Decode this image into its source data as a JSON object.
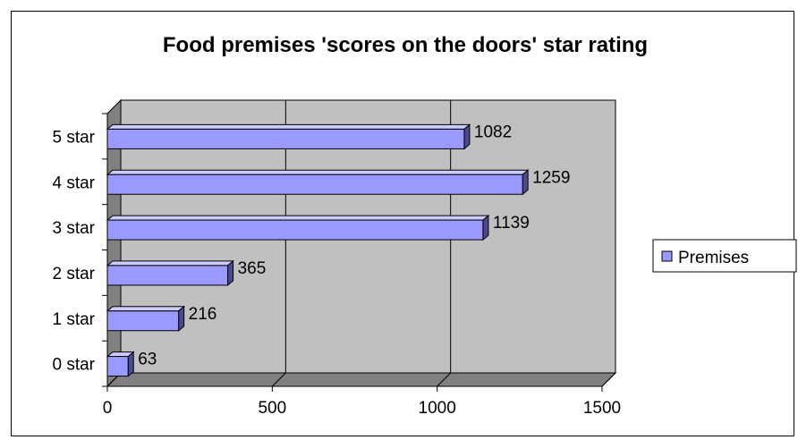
{
  "chart_data": {
    "type": "bar",
    "orientation": "horizontal",
    "title": "Food premises 'scores on the doors' star rating",
    "categories": [
      "0 star",
      "1 star",
      "2 star",
      "3 star",
      "4 star",
      "5 star"
    ],
    "series": [
      {
        "name": "Premises",
        "values": [
          63,
          216,
          365,
          1139,
          1259,
          1082
        ]
      }
    ],
    "xlim": [
      0,
      1500
    ],
    "xticks": [
      "0",
      "500",
      "1000",
      "1500"
    ],
    "grid": true,
    "legend_position": "right",
    "colors": {
      "bar_front": "#9999ff",
      "bar_top": "#ccccff",
      "bar_side": "#4b4b8c",
      "plot_wall": "#c0c0c0",
      "plot_floor": "#808080",
      "left_wall": "#808080"
    }
  }
}
